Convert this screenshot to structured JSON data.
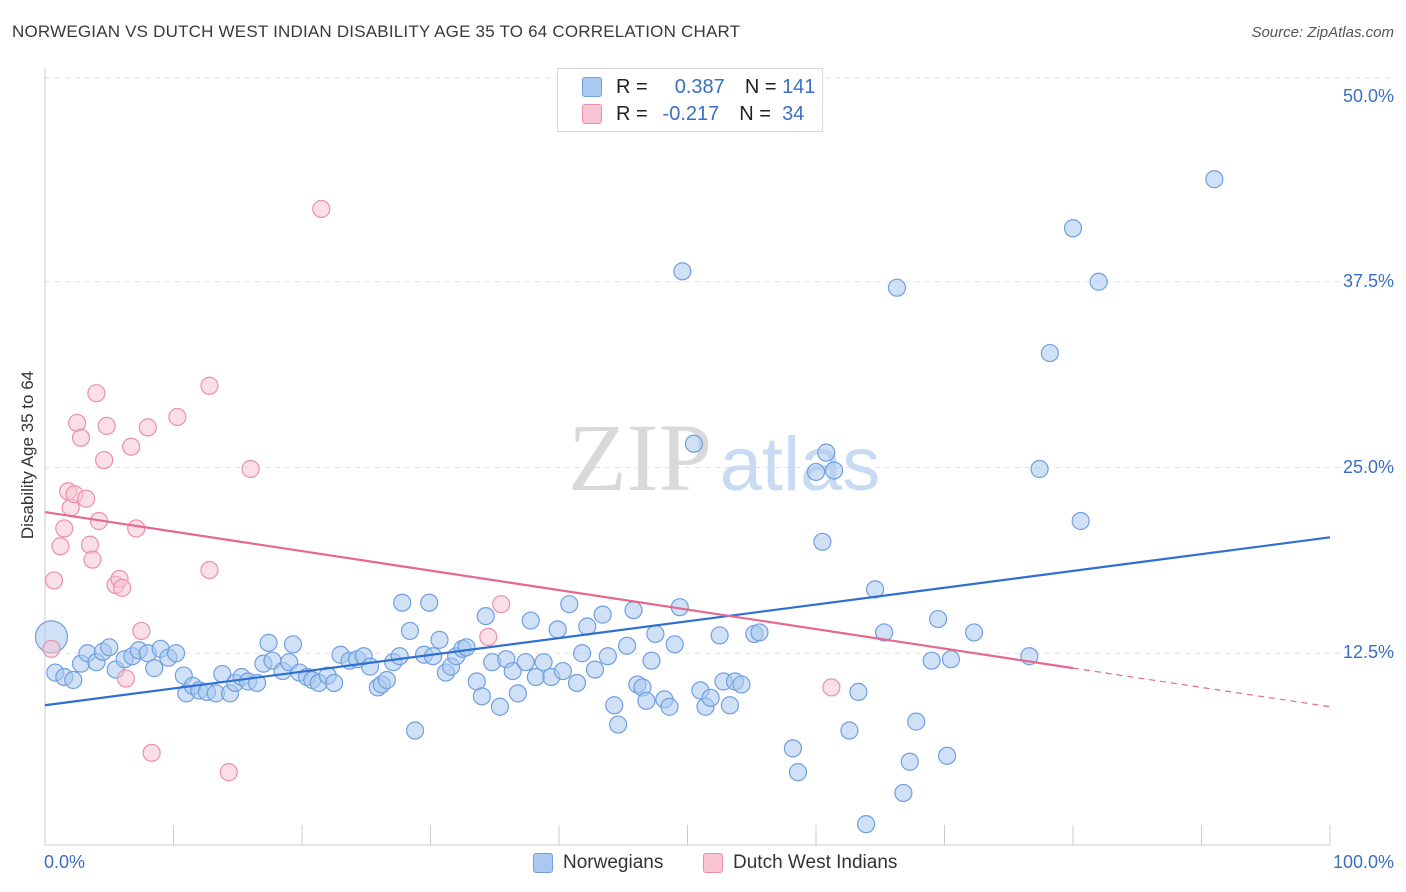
{
  "title": "NORWEGIAN VS DUTCH WEST INDIAN DISABILITY AGE 35 TO 64 CORRELATION CHART",
  "source": "Source: ZipAtlas.com",
  "watermark": {
    "zip": "ZIP",
    "atlas": "atlas"
  },
  "legend": {
    "r_label": "R =",
    "n_label": "N =",
    "rows": [
      {
        "r": "0.387",
        "n": "141",
        "color": "#aac8f0",
        "stroke": "#6f9fe0"
      },
      {
        "r": "-0.217",
        "n": "34",
        "color": "#f8c4d2",
        "stroke": "#ec8fab"
      }
    ]
  },
  "chart_data": {
    "type": "scatter",
    "title": "NORWEGIAN VS DUTCH WEST INDIAN DISABILITY AGE 35 TO 64 CORRELATION CHART",
    "xlabel": "",
    "ylabel": "Disability Age 35 to 64",
    "xlim": [
      0,
      100
    ],
    "ylim": [
      0,
      50
    ],
    "x_tick_labels": [
      "0.0%",
      "100.0%"
    ],
    "y_ticks": [
      12.5,
      25.0,
      37.5,
      50.0
    ],
    "y_tick_labels": [
      "12.5%",
      "25.0%",
      "37.5%",
      "50.0%"
    ],
    "series": [
      {
        "name": "Norwegians",
        "color": "#6f9fe0",
        "fill": "#aac8f0",
        "trend": {
          "x0": 0,
          "y0": 9.0,
          "x1": 100,
          "y1": 20.3
        },
        "points": [
          [
            0.5,
            13.6
          ],
          [
            0.8,
            11.2
          ],
          [
            1.5,
            10.9
          ],
          [
            2.2,
            10.7
          ],
          [
            2.8,
            11.8
          ],
          [
            3.3,
            12.5
          ],
          [
            4.0,
            11.9
          ],
          [
            4.5,
            12.6
          ],
          [
            5.0,
            12.9
          ],
          [
            5.5,
            11.4
          ],
          [
            6.2,
            12.1
          ],
          [
            6.8,
            12.3
          ],
          [
            7.3,
            12.7
          ],
          [
            8.0,
            12.5
          ],
          [
            8.5,
            11.5
          ],
          [
            9.0,
            12.8
          ],
          [
            9.6,
            12.2
          ],
          [
            10.2,
            12.5
          ],
          [
            10.8,
            11.0
          ],
          [
            11.0,
            9.8
          ],
          [
            11.5,
            10.3
          ],
          [
            12.0,
            10.0
          ],
          [
            12.6,
            9.9
          ],
          [
            13.3,
            9.8
          ],
          [
            13.8,
            11.1
          ],
          [
            14.4,
            9.8
          ],
          [
            14.8,
            10.5
          ],
          [
            15.3,
            10.9
          ],
          [
            15.8,
            10.6
          ],
          [
            16.5,
            10.5
          ],
          [
            17.0,
            11.8
          ],
          [
            17.7,
            12.0
          ],
          [
            17.4,
            13.2
          ],
          [
            18.5,
            11.3
          ],
          [
            19.0,
            11.9
          ],
          [
            19.3,
            13.1
          ],
          [
            19.8,
            11.2
          ],
          [
            20.4,
            10.9
          ],
          [
            20.8,
            10.7
          ],
          [
            21.3,
            10.5
          ],
          [
            22.0,
            11.0
          ],
          [
            22.5,
            10.5
          ],
          [
            23.0,
            12.4
          ],
          [
            23.7,
            12.0
          ],
          [
            24.3,
            12.1
          ],
          [
            24.8,
            12.3
          ],
          [
            25.3,
            11.6
          ],
          [
            25.9,
            10.2
          ],
          [
            26.2,
            10.4
          ],
          [
            26.6,
            10.7
          ],
          [
            27.1,
            11.9
          ],
          [
            27.6,
            12.3
          ],
          [
            27.8,
            15.9
          ],
          [
            28.4,
            14.0
          ],
          [
            28.8,
            7.3
          ],
          [
            29.5,
            12.4
          ],
          [
            29.9,
            15.9
          ],
          [
            30.2,
            12.3
          ],
          [
            30.7,
            13.4
          ],
          [
            31.2,
            11.2
          ],
          [
            31.6,
            11.6
          ],
          [
            32.0,
            12.3
          ],
          [
            32.5,
            12.8
          ],
          [
            32.8,
            12.9
          ],
          [
            33.6,
            10.6
          ],
          [
            34.0,
            9.6
          ],
          [
            34.3,
            15.0
          ],
          [
            34.8,
            11.9
          ],
          [
            35.4,
            8.9
          ],
          [
            35.9,
            12.1
          ],
          [
            36.4,
            11.3
          ],
          [
            36.8,
            9.8
          ],
          [
            37.4,
            11.9
          ],
          [
            37.8,
            14.7
          ],
          [
            38.2,
            10.9
          ],
          [
            38.8,
            11.9
          ],
          [
            39.4,
            10.9
          ],
          [
            39.9,
            14.1
          ],
          [
            40.3,
            11.3
          ],
          [
            40.8,
            15.8
          ],
          [
            41.4,
            10.5
          ],
          [
            41.8,
            12.5
          ],
          [
            42.2,
            14.3
          ],
          [
            42.8,
            11.4
          ],
          [
            43.4,
            15.1
          ],
          [
            43.8,
            12.3
          ],
          [
            44.3,
            9.0
          ],
          [
            44.6,
            7.7
          ],
          [
            45.3,
            13.0
          ],
          [
            45.8,
            15.4
          ],
          [
            46.1,
            10.4
          ],
          [
            46.5,
            10.2
          ],
          [
            46.8,
            9.3
          ],
          [
            47.2,
            12.0
          ],
          [
            47.5,
            13.8
          ],
          [
            48.2,
            9.4
          ],
          [
            48.6,
            8.9
          ],
          [
            49.0,
            13.1
          ],
          [
            49.4,
            15.6
          ],
          [
            49.6,
            38.2
          ],
          [
            50.5,
            26.6
          ],
          [
            51.0,
            10.0
          ],
          [
            51.4,
            8.9
          ],
          [
            51.8,
            9.5
          ],
          [
            52.5,
            13.7
          ],
          [
            52.8,
            10.6
          ],
          [
            53.3,
            9.0
          ],
          [
            53.7,
            10.6
          ],
          [
            54.2,
            10.4
          ],
          [
            55.2,
            13.8
          ],
          [
            55.6,
            13.9
          ],
          [
            58.2,
            6.1
          ],
          [
            58.6,
            4.5
          ],
          [
            60.0,
            24.7
          ],
          [
            60.5,
            20.0
          ],
          [
            60.8,
            26.0
          ],
          [
            61.4,
            24.8
          ],
          [
            62.6,
            7.3
          ],
          [
            63.3,
            9.9
          ],
          [
            63.9,
            1.0
          ],
          [
            64.6,
            16.8
          ],
          [
            65.3,
            13.9
          ],
          [
            66.3,
            37.1
          ],
          [
            66.8,
            3.1
          ],
          [
            67.3,
            5.2
          ],
          [
            67.8,
            7.9
          ],
          [
            69.0,
            12.0
          ],
          [
            69.5,
            14.8
          ],
          [
            70.2,
            5.6
          ],
          [
            70.5,
            12.1
          ],
          [
            72.3,
            13.9
          ],
          [
            76.6,
            12.3
          ],
          [
            77.4,
            24.9
          ],
          [
            78.2,
            32.7
          ],
          [
            80.0,
            41.1
          ],
          [
            80.6,
            21.4
          ],
          [
            82.0,
            37.5
          ],
          [
            91.0,
            44.4
          ]
        ]
      },
      {
        "name": "Dutch West Indians",
        "color": "#ec8fab",
        "fill": "#f8c4d2",
        "trend": {
          "x0": 0,
          "y0": 22.0,
          "x1": 80,
          "y1": 11.5
        },
        "trend_dashed": {
          "x0": 80,
          "y0": 11.5,
          "x1": 100,
          "y1": 8.9
        },
        "points": [
          [
            0.5,
            12.8
          ],
          [
            0.7,
            17.4
          ],
          [
            1.2,
            19.7
          ],
          [
            1.5,
            20.9
          ],
          [
            1.8,
            23.4
          ],
          [
            2.0,
            22.3
          ],
          [
            2.3,
            23.2
          ],
          [
            2.5,
            28.0
          ],
          [
            2.8,
            27.0
          ],
          [
            3.2,
            22.9
          ],
          [
            3.5,
            19.8
          ],
          [
            3.7,
            18.8
          ],
          [
            4.0,
            30.0
          ],
          [
            4.2,
            21.4
          ],
          [
            4.6,
            25.5
          ],
          [
            4.8,
            27.8
          ],
          [
            5.5,
            17.1
          ],
          [
            5.8,
            17.5
          ],
          [
            6.0,
            16.9
          ],
          [
            6.3,
            10.8
          ],
          [
            6.7,
            26.4
          ],
          [
            7.1,
            20.9
          ],
          [
            7.5,
            14.0
          ],
          [
            8.0,
            27.7
          ],
          [
            8.3,
            5.8
          ],
          [
            10.3,
            28.4
          ],
          [
            12.8,
            18.1
          ],
          [
            12.8,
            30.5
          ],
          [
            14.3,
            4.5
          ],
          [
            16.0,
            24.9
          ],
          [
            21.5,
            42.4
          ],
          [
            34.5,
            13.6
          ],
          [
            35.5,
            15.8
          ],
          [
            61.2,
            10.2
          ]
        ]
      }
    ]
  },
  "bottom_legend": [
    {
      "label": "Norwegians",
      "color": "#aac8f0",
      "stroke": "#6f9fe0"
    },
    {
      "label": "Dutch West Indians",
      "color": "#f8c4d2",
      "stroke": "#ec8fab"
    }
  ]
}
